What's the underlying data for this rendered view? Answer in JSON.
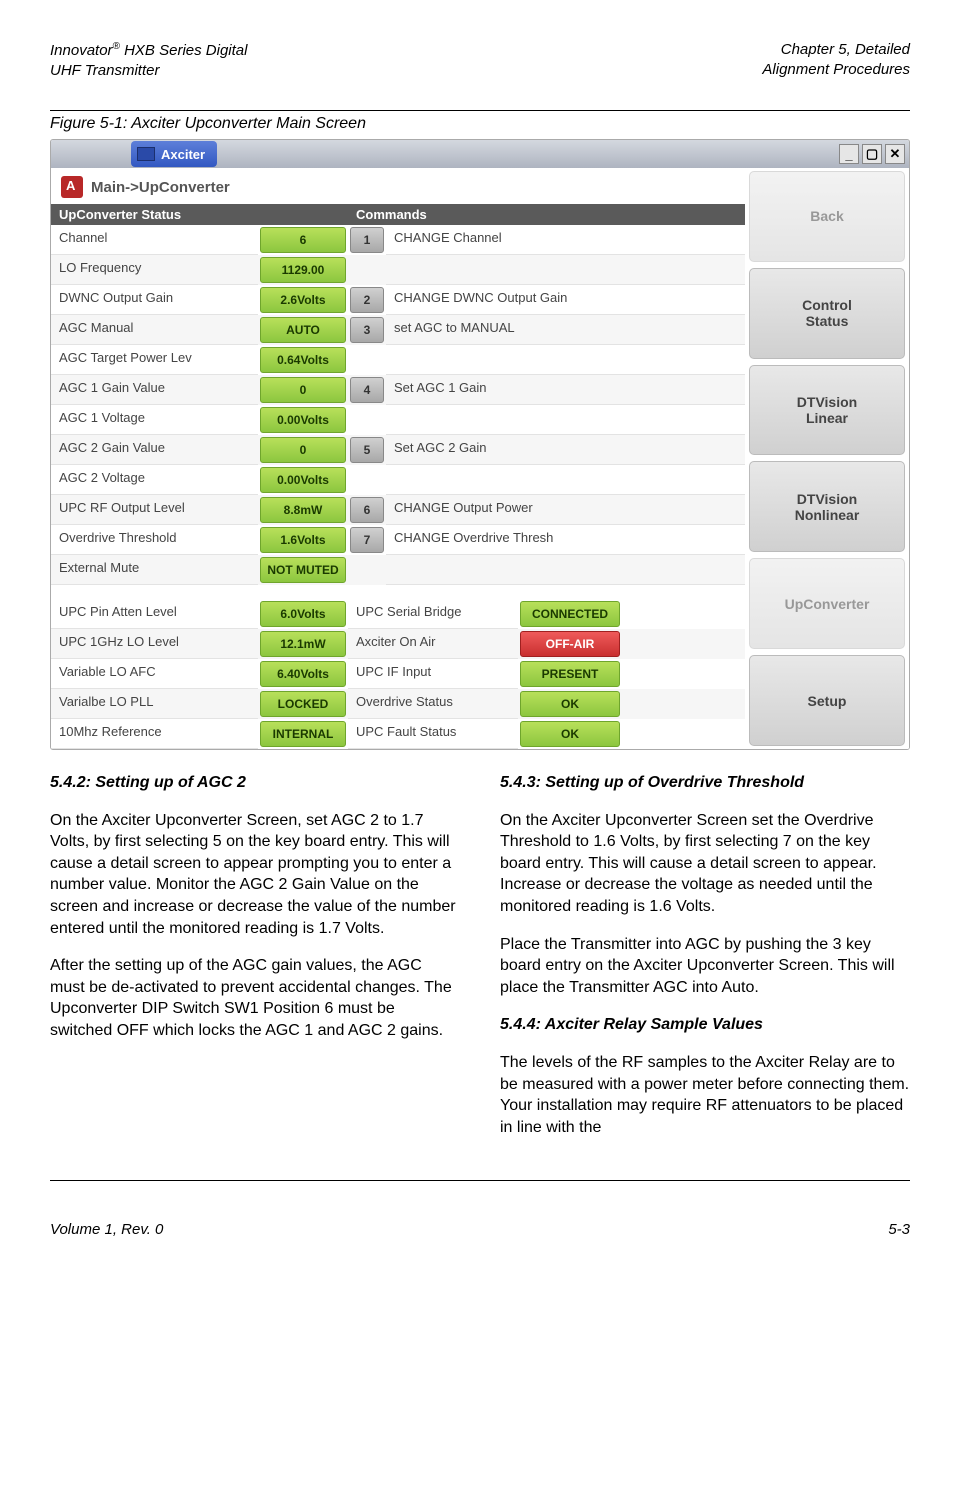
{
  "header": {
    "left_line1": "Innovator® HXB Series Digital",
    "left_line2": "UHF Transmitter",
    "right_line1": "Chapter 5, Detailed",
    "right_line2": "Alignment Procedures"
  },
  "figure_caption": "Figure 5-1: Axciter Upconverter Main Screen",
  "window": {
    "title": "Axciter",
    "breadcrumb": "Main->UpConverter",
    "col_left": "UpConverter Status",
    "col_right": "Commands"
  },
  "status_rows": [
    {
      "label": "Channel",
      "value": "6",
      "cmd_num": "1",
      "cmd": "CHANGE Channel"
    },
    {
      "label": "LO Frequency",
      "value": "1129.00",
      "cmd_num": "",
      "cmd": ""
    },
    {
      "label": "DWNC Output Gain",
      "value": "2.6Volts",
      "cmd_num": "2",
      "cmd": "CHANGE DWNC Output Gain"
    },
    {
      "label": "AGC Manual",
      "value": "AUTO",
      "cmd_num": "3",
      "cmd": "set AGC to MANUAL"
    },
    {
      "label": "AGC Target Power Lev",
      "value": "0.64Volts",
      "cmd_num": "",
      "cmd": ""
    },
    {
      "label": "AGC 1 Gain Value",
      "value": "0",
      "cmd_num": "4",
      "cmd": "Set AGC 1 Gain"
    },
    {
      "label": "AGC 1 Voltage",
      "value": "0.00Volts",
      "cmd_num": "",
      "cmd": ""
    },
    {
      "label": "AGC 2 Gain Value",
      "value": "0",
      "cmd_num": "5",
      "cmd": "Set AGC 2 Gain"
    },
    {
      "label": "AGC 2 Voltage",
      "value": "0.00Volts",
      "cmd_num": "",
      "cmd": ""
    },
    {
      "label": "UPC RF Output Level",
      "value": "8.8mW",
      "cmd_num": "6",
      "cmd": "CHANGE Output Power"
    },
    {
      "label": "Overdrive Threshold",
      "value": "1.6Volts",
      "cmd_num": "7",
      "cmd": "CHANGE Overdrive Thresh"
    },
    {
      "label": "External Mute",
      "value": "NOT MUTED",
      "cmd_num": "",
      "cmd": ""
    }
  ],
  "lower_rows": [
    {
      "label": "UPC Pin Atten Level",
      "value": "6.0Volts",
      "label2": "UPC Serial Bridge",
      "value2": "CONNECTED",
      "v2_color": "green"
    },
    {
      "label": "UPC 1GHz LO Level",
      "value": "12.1mW",
      "label2": "Axciter On Air",
      "value2": "OFF-AIR",
      "v2_color": "red"
    },
    {
      "label": "Variable LO AFC",
      "value": "6.40Volts",
      "label2": "UPC IF Input",
      "value2": "PRESENT",
      "v2_color": "green"
    },
    {
      "label": "Varialbe LO PLL",
      "value": "LOCKED",
      "label2": "Overdrive Status",
      "value2": "OK",
      "v2_color": "green"
    },
    {
      "label": "10Mhz Reference",
      "value": "INTERNAL",
      "label2": "UPC Fault Status",
      "value2": "OK",
      "v2_color": "green"
    }
  ],
  "side_buttons": [
    {
      "label": "Back",
      "disabled": true
    },
    {
      "label": "Control\nStatus",
      "disabled": false
    },
    {
      "label": "DTVision\nLinear",
      "disabled": false
    },
    {
      "label": "DTVision\nNonlinear",
      "disabled": false
    },
    {
      "label": "UpConverter",
      "disabled": true
    },
    {
      "label": "Setup",
      "disabled": false
    }
  ],
  "sections": {
    "s1_h": "5.4.2: Setting up of AGC 2",
    "s1_p1": "On the Axciter Upconverter Screen, set AGC 2 to 1.7 Volts, by first selecting 5 on the key board entry.  This will cause a detail screen to appear prompting you to enter a number value.  Monitor the AGC 2 Gain Value on the screen and increase or decrease the value of the number entered until the monitored reading is 1.7 Volts.",
    "s1_p2": "After the setting up of the AGC gain values, the AGC must be de-activated to prevent accidental changes.  The Upconverter DIP Switch SW1 Position 6 must be switched OFF which locks the AGC 1 and AGC 2 gains.",
    "s2_h": "5.4.3: Setting up of Overdrive Threshold",
    "s2_p1": "On the Axciter Upconverter Screen set the Overdrive Threshold to 1.6 Volts, by first selecting 7 on the key board entry.  This will cause a detail screen to appear.  Increase or decrease the voltage as needed until the monitored reading is 1.6 Volts.",
    "s2_p2": "Place the Transmitter into AGC by pushing the 3 key board entry on the Axciter Upconverter Screen.  This will place the Transmitter AGC into Auto.",
    "s3_h": "5.4.4: Axciter Relay Sample Values",
    "s3_p1": "The levels of the RF samples to the Axciter Relay are to be measured with a power meter before connecting them.  Your installation may require RF attenuators to be placed in line with the"
  },
  "footer": {
    "left": "Volume 1, Rev. 0",
    "right": "5-3"
  }
}
